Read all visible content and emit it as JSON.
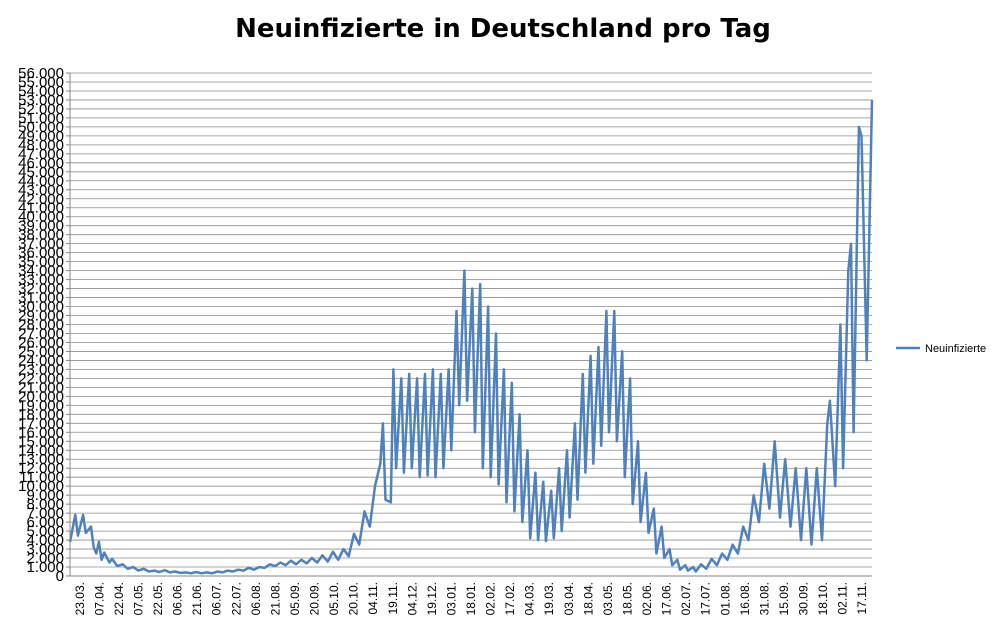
{
  "chart_data": {
    "type": "line",
    "title": "Neuinfizierte in Deutschland pro Tag",
    "xlabel": "",
    "ylabel": "",
    "ylim": [
      0,
      56000
    ],
    "ytick_step": 1000,
    "grid": true,
    "legend": "right",
    "x_tick_labels": [
      "23.03.",
      "07.04.",
      "22.04.",
      "07.05.",
      "22.05.",
      "06.06.",
      "21.06.",
      "06.07.",
      "22.07.",
      "06.08.",
      "21.08.",
      "05.09.",
      "20.09.",
      "05.10.",
      "20.10.",
      "04.11.",
      "19.11.",
      "04.12.",
      "19.12.",
      "03.01.",
      "18.01.",
      "02.02.",
      "17.02.",
      "04.03.",
      "19.03.",
      "03.04.",
      "18.04.",
      "03.05.",
      "18.05.",
      "02.06.",
      "17.06.",
      "02.07.",
      "17.07.",
      "01.08.",
      "16.08.",
      "31.08.",
      "15.09.",
      "30.09.",
      "18.10.",
      "02.11.",
      "17.11."
    ],
    "series": [
      {
        "name": "Neuinfizierte",
        "color": "#4F81BD",
        "anchors": [
          [
            0,
            3800
          ],
          [
            2,
            6800
          ],
          [
            3,
            4500
          ],
          [
            5,
            6800
          ],
          [
            6,
            4800
          ],
          [
            8,
            5500
          ],
          [
            9,
            3200
          ],
          [
            10,
            2500
          ],
          [
            11,
            3800
          ],
          [
            12,
            1800
          ],
          [
            13,
            2600
          ],
          [
            15,
            1500
          ],
          [
            16,
            1900
          ],
          [
            18,
            1100
          ],
          [
            20,
            1300
          ],
          [
            22,
            800
          ],
          [
            24,
            1000
          ],
          [
            26,
            600
          ],
          [
            28,
            800
          ],
          [
            30,
            500
          ],
          [
            32,
            600
          ],
          [
            34,
            450
          ],
          [
            36,
            650
          ],
          [
            38,
            400
          ],
          [
            40,
            500
          ],
          [
            42,
            350
          ],
          [
            44,
            400
          ],
          [
            46,
            300
          ],
          [
            48,
            450
          ],
          [
            50,
            300
          ],
          [
            52,
            400
          ],
          [
            54,
            300
          ],
          [
            56,
            500
          ],
          [
            58,
            400
          ],
          [
            60,
            600
          ],
          [
            62,
            500
          ],
          [
            64,
            700
          ],
          [
            66,
            600
          ],
          [
            68,
            900
          ],
          [
            70,
            700
          ],
          [
            72,
            1000
          ],
          [
            74,
            900
          ],
          [
            76,
            1300
          ],
          [
            78,
            1100
          ],
          [
            80,
            1500
          ],
          [
            82,
            1200
          ],
          [
            84,
            1700
          ],
          [
            86,
            1300
          ],
          [
            88,
            1800
          ],
          [
            90,
            1400
          ],
          [
            92,
            2000
          ],
          [
            94,
            1500
          ],
          [
            96,
            2300
          ],
          [
            98,
            1600
          ],
          [
            100,
            2700
          ],
          [
            102,
            1800
          ],
          [
            104,
            3000
          ],
          [
            106,
            2200
          ],
          [
            108,
            4700
          ],
          [
            110,
            3500
          ],
          [
            112,
            7200
          ],
          [
            114,
            5500
          ],
          [
            116,
            10000
          ],
          [
            118,
            12500
          ],
          [
            119,
            17000
          ],
          [
            120,
            8500
          ],
          [
            122,
            8200
          ],
          [
            123,
            23000
          ],
          [
            124,
            12000
          ],
          [
            126,
            22000
          ],
          [
            127,
            11500
          ],
          [
            129,
            22500
          ],
          [
            130,
            12000
          ],
          [
            132,
            22000
          ],
          [
            133,
            11000
          ],
          [
            135,
            22500
          ],
          [
            136,
            11200
          ],
          [
            138,
            23000
          ],
          [
            139,
            11000
          ],
          [
            141,
            22500
          ],
          [
            142,
            12000
          ],
          [
            144,
            23000
          ],
          [
            145,
            14000
          ],
          [
            147,
            29500
          ],
          [
            148,
            19000
          ],
          [
            150,
            34000
          ],
          [
            151,
            19500
          ],
          [
            153,
            32000
          ],
          [
            154,
            16000
          ],
          [
            156,
            32500
          ],
          [
            157,
            12000
          ],
          [
            159,
            30000
          ],
          [
            160,
            11000
          ],
          [
            162,
            27000
          ],
          [
            163,
            10200
          ],
          [
            165,
            23000
          ],
          [
            166,
            8200
          ],
          [
            168,
            21500
          ],
          [
            169,
            7200
          ],
          [
            171,
            18000
          ],
          [
            172,
            6000
          ],
          [
            174,
            14000
          ],
          [
            175,
            4200
          ],
          [
            177,
            11500
          ],
          [
            178,
            4000
          ],
          [
            180,
            10500
          ],
          [
            181,
            3900
          ],
          [
            183,
            9500
          ],
          [
            184,
            4200
          ],
          [
            186,
            12000
          ],
          [
            187,
            5000
          ],
          [
            189,
            14000
          ],
          [
            190,
            6500
          ],
          [
            192,
            17000
          ],
          [
            193,
            8500
          ],
          [
            195,
            22500
          ],
          [
            196,
            11500
          ],
          [
            198,
            24500
          ],
          [
            199,
            12500
          ],
          [
            201,
            25500
          ],
          [
            202,
            14500
          ],
          [
            204,
            29500
          ],
          [
            205,
            16000
          ],
          [
            207,
            29500
          ],
          [
            208,
            15000
          ],
          [
            210,
            25000
          ],
          [
            211,
            11000
          ],
          [
            213,
            22000
          ],
          [
            214,
            8000
          ],
          [
            216,
            15000
          ],
          [
            217,
            6000
          ],
          [
            219,
            11500
          ],
          [
            220,
            4800
          ],
          [
            222,
            7500
          ],
          [
            223,
            2500
          ],
          [
            225,
            5500
          ],
          [
            226,
            2000
          ],
          [
            228,
            3000
          ],
          [
            229,
            1200
          ],
          [
            231,
            1800
          ],
          [
            232,
            700
          ],
          [
            234,
            1200
          ],
          [
            235,
            600
          ],
          [
            237,
            1000
          ],
          [
            238,
            500
          ],
          [
            240,
            1300
          ],
          [
            242,
            800
          ],
          [
            244,
            1900
          ],
          [
            246,
            1200
          ],
          [
            248,
            2500
          ],
          [
            250,
            1800
          ],
          [
            252,
            3500
          ],
          [
            254,
            2500
          ],
          [
            256,
            5500
          ],
          [
            258,
            4000
          ],
          [
            260,
            9000
          ],
          [
            262,
            6000
          ],
          [
            264,
            12500
          ],
          [
            266,
            7500
          ],
          [
            268,
            15000
          ],
          [
            270,
            6500
          ],
          [
            272,
            13000
          ],
          [
            274,
            5500
          ],
          [
            276,
            12000
          ],
          [
            278,
            4000
          ],
          [
            280,
            12000
          ],
          [
            282,
            3500
          ],
          [
            284,
            12000
          ],
          [
            286,
            4000
          ],
          [
            288,
            17000
          ],
          [
            289,
            19500
          ],
          [
            291,
            10000
          ],
          [
            293,
            28000
          ],
          [
            294,
            12000
          ],
          [
            296,
            34000
          ],
          [
            297,
            37000
          ],
          [
            298,
            16000
          ],
          [
            300,
            50000
          ],
          [
            301,
            49000
          ],
          [
            303,
            24000
          ],
          [
            305,
            53000
          ]
        ]
      }
    ]
  }
}
